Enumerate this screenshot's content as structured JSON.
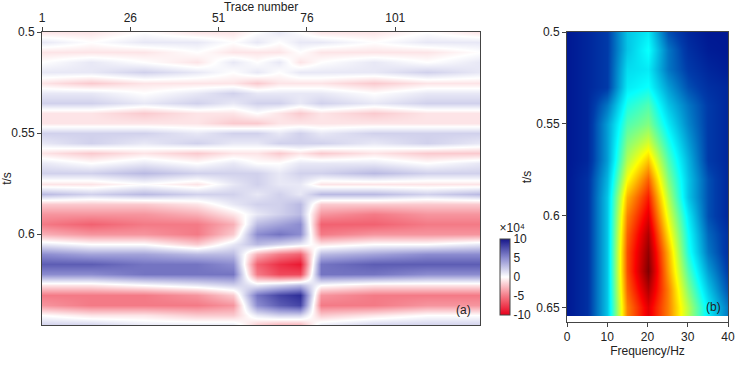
{
  "chart_data": [
    {
      "type": "heatmap",
      "label": "(a)",
      "x_label": "Trace number",
      "y_label": "t/s",
      "xlim": [
        1,
        125
      ],
      "xticks": [
        1,
        26,
        51,
        76,
        101
      ],
      "ylim": [
        0.5,
        0.645
      ],
      "yticks": [
        0.5,
        0.55,
        0.6
      ],
      "colorbar": {
        "title": "×10⁴",
        "zlim": [
          -10,
          10
        ],
        "ticks": [
          10,
          5,
          0,
          -5,
          -10
        ]
      },
      "x": [
        1,
        15,
        30,
        45,
        55,
        62,
        68,
        74,
        80,
        95,
        110,
        125
      ],
      "y": [
        0.5,
        0.505,
        0.51,
        0.515,
        0.52,
        0.525,
        0.53,
        0.535,
        0.54,
        0.545,
        0.55,
        0.555,
        0.56,
        0.565,
        0.57,
        0.575,
        0.58,
        0.585,
        0.59,
        0.595,
        0.6,
        0.605,
        0.61,
        0.615,
        0.62,
        0.625,
        0.63,
        0.635,
        0.64,
        0.645
      ],
      "z": [
        [
          -1,
          -1,
          0,
          -1,
          -1,
          0,
          1,
          0,
          -1,
          -1,
          0,
          -1
        ],
        [
          1,
          0,
          1,
          1,
          0,
          1,
          0,
          1,
          1,
          0,
          1,
          1
        ],
        [
          -1,
          -1,
          -1,
          0,
          -1,
          -1,
          -1,
          0,
          -1,
          -1,
          -1,
          0
        ],
        [
          0,
          1,
          0,
          -1,
          1,
          0,
          1,
          -1,
          0,
          1,
          0,
          1
        ],
        [
          1,
          1,
          2,
          1,
          0,
          1,
          0,
          1,
          1,
          1,
          2,
          1
        ],
        [
          -1,
          -2,
          -1,
          -1,
          -1,
          -2,
          -1,
          -1,
          -1,
          -2,
          -1,
          -1
        ],
        [
          1,
          1,
          0,
          1,
          2,
          1,
          1,
          1,
          1,
          0,
          1,
          1
        ],
        [
          2,
          2,
          1,
          2,
          1,
          2,
          2,
          1,
          2,
          1,
          2,
          2
        ],
        [
          -1,
          -1,
          -2,
          -1,
          -1,
          0,
          -1,
          -2,
          -1,
          -2,
          -1,
          -1
        ],
        [
          -1,
          -1,
          -1,
          -1,
          -2,
          -2,
          -1,
          -1,
          -1,
          -1,
          -1,
          -1
        ],
        [
          2,
          2,
          2,
          1,
          2,
          2,
          1,
          2,
          1,
          2,
          2,
          2
        ],
        [
          1,
          2,
          1,
          2,
          1,
          1,
          2,
          2,
          2,
          1,
          2,
          1
        ],
        [
          -1,
          -2,
          -1,
          -2,
          -1,
          -1,
          -2,
          -1,
          -2,
          -1,
          -2,
          -2
        ],
        [
          1,
          0,
          1,
          0,
          1,
          0,
          0,
          1,
          1,
          1,
          0,
          1
        ],
        [
          2,
          2,
          3,
          2,
          2,
          2,
          1,
          2,
          2,
          3,
          2,
          2
        ],
        [
          -1,
          -1,
          0,
          -1,
          1,
          2,
          1,
          1,
          -1,
          -1,
          -1,
          -1
        ],
        [
          3,
          2,
          3,
          2,
          2,
          1,
          2,
          1,
          3,
          3,
          2,
          3
        ],
        [
          -2,
          -2,
          -2,
          -1,
          1,
          2,
          2,
          3,
          -2,
          -2,
          -2,
          -2
        ],
        [
          -4,
          -4,
          -4,
          -3,
          -1,
          1,
          2,
          3,
          -4,
          -5,
          -4,
          -4
        ],
        [
          -5,
          -6,
          -5,
          -5,
          -3,
          3,
          4,
          5,
          -6,
          -6,
          -5,
          -5
        ],
        [
          -3,
          -4,
          -4,
          -5,
          -2,
          5,
          6,
          5,
          -5,
          -4,
          -4,
          -4
        ],
        [
          1,
          0,
          0,
          -2,
          1,
          3,
          2,
          1,
          -1,
          0,
          0,
          1
        ],
        [
          5,
          4,
          4,
          3,
          3,
          -3,
          -5,
          -6,
          3,
          4,
          5,
          5
        ],
        [
          7,
          7,
          6,
          6,
          5,
          -6,
          -8,
          -9,
          6,
          7,
          7,
          7
        ],
        [
          5,
          5,
          6,
          6,
          6,
          -5,
          -7,
          -7,
          6,
          6,
          5,
          5
        ],
        [
          -1,
          -1,
          0,
          1,
          2,
          1,
          2,
          3,
          0,
          -1,
          -1,
          -1
        ],
        [
          -5,
          -5,
          -5,
          -4,
          -2,
          6,
          8,
          9,
          -4,
          -5,
          -5,
          -5
        ],
        [
          -4,
          -5,
          -5,
          -5,
          -4,
          5,
          7,
          8,
          -5,
          -5,
          -4,
          -4
        ],
        [
          0,
          -1,
          -1,
          -2,
          -2,
          1,
          2,
          2,
          -2,
          -1,
          0,
          0
        ],
        [
          2,
          2,
          1,
          1,
          1,
          -2,
          -3,
          -3,
          1,
          2,
          2,
          2
        ]
      ]
    },
    {
      "type": "heatmap",
      "label": "(b)",
      "x_label": "Frequency/Hz",
      "y_label": "t/s",
      "xlim": [
        0,
        40
      ],
      "xticks": [
        0,
        10,
        20,
        30,
        40
      ],
      "ylim": [
        0.5,
        0.658
      ],
      "yticks": [
        0.5,
        0.55,
        0.6,
        0.65
      ],
      "zlim": [
        0,
        1
      ],
      "x": [
        0,
        5,
        10,
        15,
        20,
        25,
        30,
        35,
        40
      ],
      "y": [
        0.5,
        0.51,
        0.52,
        0.53,
        0.54,
        0.55,
        0.56,
        0.57,
        0.58,
        0.59,
        0.6,
        0.61,
        0.62,
        0.63,
        0.64,
        0.65
      ],
      "z": [
        [
          0.05,
          0.08,
          0.12,
          0.3,
          0.35,
          0.15,
          0.08,
          0.05,
          0.05
        ],
        [
          0.05,
          0.08,
          0.12,
          0.3,
          0.38,
          0.2,
          0.1,
          0.06,
          0.05
        ],
        [
          0.05,
          0.08,
          0.12,
          0.33,
          0.35,
          0.2,
          0.12,
          0.08,
          0.06
        ],
        [
          0.05,
          0.08,
          0.12,
          0.35,
          0.38,
          0.25,
          0.15,
          0.1,
          0.08
        ],
        [
          0.05,
          0.08,
          0.2,
          0.4,
          0.45,
          0.3,
          0.2,
          0.12,
          0.08
        ],
        [
          0.05,
          0.08,
          0.25,
          0.45,
          0.5,
          0.35,
          0.22,
          0.12,
          0.08
        ],
        [
          0.05,
          0.08,
          0.25,
          0.5,
          0.58,
          0.4,
          0.25,
          0.12,
          0.08
        ],
        [
          0.05,
          0.08,
          0.25,
          0.55,
          0.68,
          0.45,
          0.28,
          0.12,
          0.08
        ],
        [
          0.05,
          0.1,
          0.28,
          0.62,
          0.78,
          0.5,
          0.3,
          0.15,
          0.08
        ],
        [
          0.05,
          0.1,
          0.3,
          0.7,
          0.85,
          0.55,
          0.3,
          0.15,
          0.08
        ],
        [
          0.05,
          0.1,
          0.3,
          0.75,
          0.9,
          0.6,
          0.35,
          0.15,
          0.08
        ],
        [
          0.05,
          0.1,
          0.3,
          0.78,
          0.95,
          0.65,
          0.38,
          0.18,
          0.1
        ],
        [
          0.05,
          0.1,
          0.3,
          0.8,
          0.98,
          0.7,
          0.4,
          0.2,
          0.1
        ],
        [
          0.05,
          0.1,
          0.3,
          0.8,
          1.0,
          0.72,
          0.45,
          0.25,
          0.12
        ],
        [
          0.05,
          0.1,
          0.3,
          0.78,
          0.95,
          0.75,
          0.5,
          0.3,
          0.15
        ],
        [
          0.05,
          0.1,
          0.3,
          0.75,
          0.9,
          0.75,
          0.55,
          0.35,
          0.2
        ]
      ]
    }
  ]
}
